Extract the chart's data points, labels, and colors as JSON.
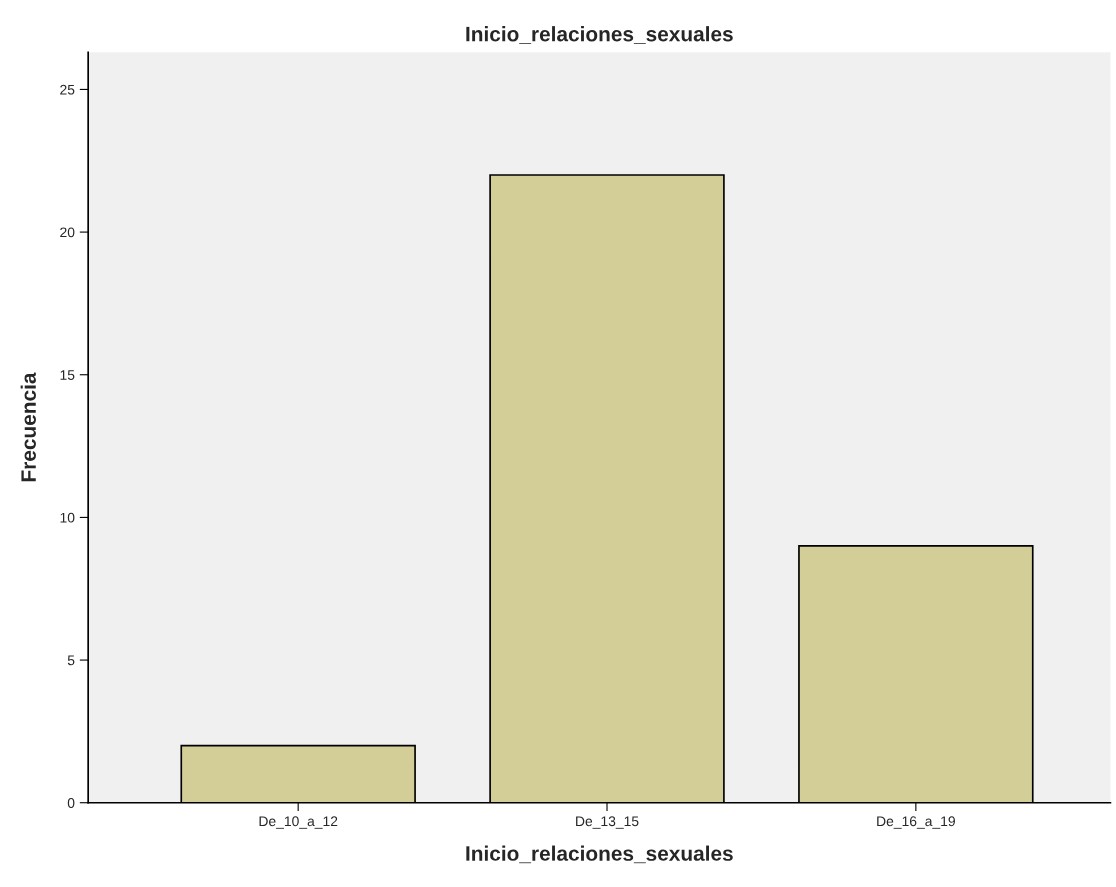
{
  "chart_data": {
    "type": "bar",
    "title": "Inicio_relaciones_sexuales",
    "xlabel": "Inicio_relaciones_sexuales",
    "ylabel": "Frecuencia",
    "categories": [
      "De_10_a_12",
      "De_13_15",
      "De_16_a_19"
    ],
    "values": [
      2,
      22,
      9
    ],
    "color": "#d3ce97",
    "ylim": [
      0,
      26.3
    ],
    "yticks": [
      0,
      5,
      10,
      15,
      20,
      25
    ],
    "grid": false,
    "legend": false
  }
}
